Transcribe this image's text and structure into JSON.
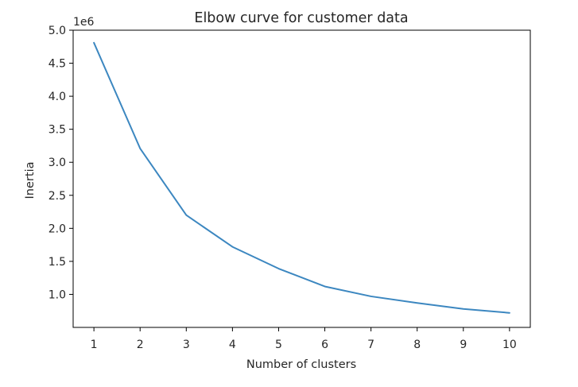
{
  "chart_data": {
    "type": "line",
    "title": "Elbow curve for customer data",
    "xlabel": "Number of clusters",
    "ylabel": "Inertia",
    "y_offset_text": "1e6",
    "x": [
      1,
      2,
      3,
      4,
      5,
      6,
      7,
      8,
      9,
      10
    ],
    "series": [
      {
        "values": [
          4.81,
          3.21,
          2.2,
          1.72,
          1.39,
          1.12,
          0.97,
          0.87,
          0.78,
          0.72
        ],
        "color": "#3c87c0"
      }
    ],
    "xticks": [
      1,
      2,
      3,
      4,
      5,
      6,
      7,
      8,
      9,
      10
    ],
    "xtick_labels": [
      "1",
      "2",
      "3",
      "4",
      "5",
      "6",
      "7",
      "8",
      "9",
      "10"
    ],
    "yticks": [
      1.0,
      1.5,
      2.0,
      2.5,
      3.0,
      3.5,
      4.0,
      4.5,
      5.0
    ],
    "ytick_labels": [
      "1.0",
      "1.5",
      "2.0",
      "2.5",
      "3.0",
      "3.5",
      "4.0",
      "4.5",
      "5.0"
    ],
    "xlim": [
      0.55,
      10.45
    ],
    "ylim": [
      0.5,
      5.0
    ],
    "grid": false,
    "legend": "none"
  }
}
